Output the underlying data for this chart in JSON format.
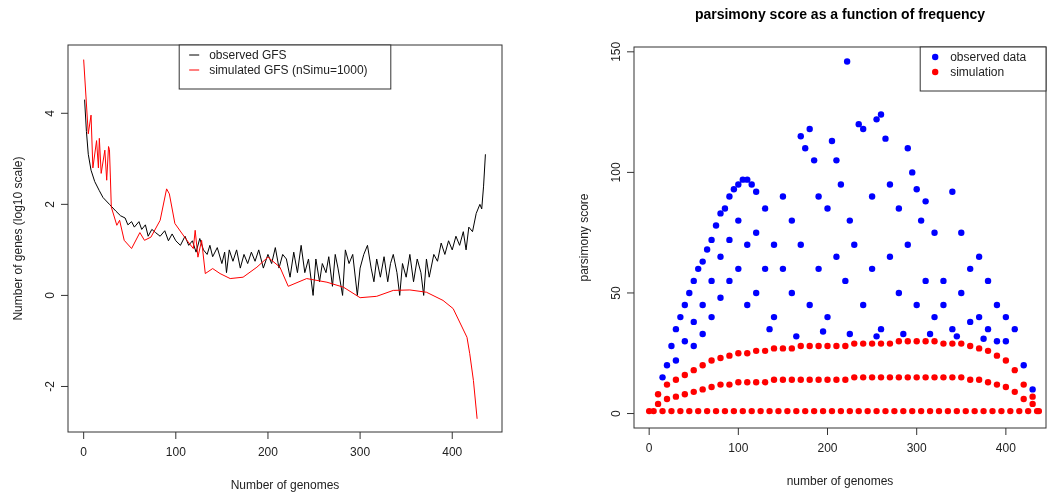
{
  "chart_data": [
    {
      "type": "line",
      "xlabel": "Number of genomes",
      "ylabel": "Number of genes (log10 scale)",
      "xlim": [
        -17,
        454
      ],
      "ylim": [
        -3,
        5.5
      ],
      "xticks": [
        0,
        100,
        200,
        300,
        400
      ],
      "yticks": [
        -2,
        0,
        2,
        4
      ],
      "legend": "top",
      "line_style": "solid",
      "series": [
        {
          "name": "observed GFS",
          "color": "#000000",
          "x": [
            1,
            3,
            5,
            8,
            12,
            17,
            21,
            28,
            35,
            40,
            45,
            48,
            52,
            55,
            60,
            63,
            67,
            70,
            74,
            78,
            83,
            88,
            92,
            96,
            100,
            105,
            110,
            114,
            118,
            122,
            126,
            130,
            134,
            137,
            140,
            145,
            150,
            153,
            155,
            158,
            162,
            166,
            170,
            174,
            178,
            182,
            186,
            190,
            195,
            200,
            204,
            208,
            212,
            216,
            220,
            224,
            228,
            232,
            236,
            240,
            244,
            249,
            252,
            256,
            259,
            263,
            266,
            270,
            273,
            276,
            281,
            284,
            288,
            292,
            297,
            300,
            304,
            308,
            312,
            315,
            318,
            322,
            326,
            330,
            333,
            336,
            340,
            343,
            346,
            350,
            354,
            358,
            362,
            366,
            369,
            372,
            375,
            380,
            384,
            388,
            392,
            396,
            400,
            404,
            408,
            412,
            415,
            418,
            422,
            426,
            430,
            432,
            434,
            436
          ],
          "values": [
            4.3,
            3.6,
            3.1,
            2.75,
            2.5,
            2.3,
            2.15,
            2.0,
            1.85,
            1.75,
            1.7,
            1.55,
            1.62,
            1.5,
            1.62,
            1.45,
            1.55,
            1.3,
            1.45,
            1.38,
            1.3,
            1.42,
            1.2,
            1.35,
            1.2,
            1.1,
            1.3,
            1.1,
            1.2,
            0.95,
            1.25,
            1.0,
            0.9,
            1.1,
            0.85,
            1.05,
            0.7,
            0.95,
            0.5,
            1.0,
            0.75,
            1.0,
            0.6,
            0.9,
            0.7,
            0.95,
            0.75,
            1.0,
            0.6,
            0.9,
            0.7,
            1.05,
            0.6,
            0.9,
            0.8,
            0.4,
            0.95,
            0.5,
            1.1,
            0.5,
            0.8,
            0.0,
            0.8,
            0.3,
            0.7,
            0.5,
            0.85,
            0.2,
            0.9,
            0.6,
            0.0,
            1.0,
            0.7,
            0.9,
            0.0,
            0.6,
            0.9,
            1.1,
            0.6,
            0.3,
            0.8,
            0.4,
            0.85,
            0.3,
            0.7,
            0.9,
            0.5,
            0.0,
            0.7,
            0.4,
            0.9,
            0.3,
            0.8,
            0.5,
            0.0,
            0.8,
            0.4,
            0.9,
            0.75,
            1.15,
            0.9,
            1.2,
            1.0,
            1.3,
            1.1,
            1.4,
            1.0,
            1.5,
            1.4,
            1.8,
            2.0,
            1.9,
            2.4,
            3.1
          ]
        },
        {
          "name": "simulated GFS (nSimu=1000)",
          "color": "#ff0000",
          "x": [
            0,
            5,
            8,
            10,
            14,
            16,
            17,
            19,
            23,
            25,
            27,
            28,
            29,
            30,
            36,
            39,
            44,
            52,
            61,
            66,
            73,
            83,
            90,
            93,
            99,
            112,
            119,
            121,
            124,
            128,
            132,
            140,
            148,
            159,
            173,
            188,
            200,
            213,
            222,
            242,
            264,
            282,
            300,
            318,
            336,
            354,
            372,
            390,
            401,
            416,
            419,
            423,
            427
          ],
          "values": [
            5.18,
            3.55,
            3.96,
            2.8,
            3.4,
            2.8,
            3.45,
            2.68,
            3.19,
            2.53,
            3.27,
            3.2,
            2.6,
            1.94,
            1.54,
            1.65,
            1.21,
            1.03,
            1.38,
            1.21,
            1.28,
            1.65,
            2.34,
            2.23,
            1.58,
            1.21,
            1.03,
            1.43,
            0.84,
            1.21,
            0.48,
            0.59,
            0.48,
            0.37,
            0.4,
            0.62,
            0.84,
            0.62,
            0.2,
            0.37,
            0.29,
            0.18,
            -0.05,
            -0.02,
            0.11,
            0.12,
            0.07,
            -0.11,
            -0.29,
            -0.92,
            -1.28,
            -1.87,
            -2.71
          ]
        }
      ]
    },
    {
      "type": "scatter",
      "title": "parsimony score as a function of frequency",
      "xlabel": "number of genomes",
      "ylabel": "parsimony score",
      "xlim": [
        -17,
        445
      ],
      "ylim": [
        -6,
        152
      ],
      "xticks": [
        0,
        100,
        200,
        300,
        400
      ],
      "yticks": [
        0,
        50,
        100,
        150
      ],
      "legend": "top right",
      "marker": "circle",
      "series": [
        {
          "name": "observed data",
          "color": "#0000ff",
          "x": [
            15,
            20,
            25,
            30,
            35,
            40,
            45,
            50,
            55,
            60,
            65,
            70,
            75,
            80,
            85,
            90,
            95,
            100,
            105,
            110,
            115,
            120,
            30,
            40,
            50,
            60,
            70,
            80,
            90,
            100,
            50,
            60,
            70,
            80,
            90,
            100,
            110,
            120,
            130,
            110,
            120,
            130,
            140,
            150,
            160,
            170,
            175,
            180,
            185,
            190,
            200,
            205,
            210,
            215,
            222,
            225,
            235,
            240,
            250,
            255,
            260,
            265,
            270,
            280,
            290,
            295,
            300,
            305,
            310,
            320,
            330,
            340,
            350,
            360,
            370,
            380,
            390,
            400,
            410,
            420,
            430,
            140,
            160,
            180,
            200,
            220,
            240,
            260,
            280,
            300,
            320,
            340,
            360,
            380,
            150,
            170,
            190,
            210,
            230,
            250,
            270,
            290,
            310,
            330,
            350,
            370,
            390,
            400,
            135,
            165,
            195,
            225,
            255,
            285,
            315,
            345,
            375
          ],
          "values": [
            15,
            20,
            28,
            35,
            40,
            45,
            50,
            55,
            60,
            63,
            68,
            72,
            78,
            83,
            85,
            90,
            93,
            95,
            97,
            97,
            95,
            92,
            22,
            30,
            38,
            45,
            55,
            65,
            72,
            80,
            28,
            33,
            40,
            48,
            55,
            60,
            70,
            75,
            85,
            45,
            50,
            60,
            70,
            90,
            80,
            115,
            110,
            118,
            105,
            90,
            85,
            113,
            105,
            95,
            146,
            80,
            120,
            118,
            90,
            122,
            124,
            114,
            95,
            85,
            110,
            100,
            93,
            80,
            88,
            75,
            55,
            92,
            75,
            60,
            65,
            55,
            45,
            40,
            35,
            20,
            10,
            40,
            50,
            45,
            40,
            55,
            45,
            35,
            50,
            45,
            40,
            35,
            38,
            35,
            60,
            70,
            60,
            65,
            70,
            60,
            65,
            70,
            55,
            45,
            50,
            40,
            30,
            30,
            35,
            32,
            34,
            33,
            32,
            33,
            33,
            32,
            31
          ]
        },
        {
          "name": "simulation",
          "color": "#ff0000",
          "x": [
            0,
            10,
            20,
            30,
            40,
            50,
            60,
            70,
            80,
            90,
            100,
            110,
            120,
            130,
            140,
            150,
            160,
            170,
            180,
            190,
            200,
            210,
            220,
            230,
            240,
            250,
            260,
            270,
            280,
            290,
            300,
            310,
            320,
            330,
            340,
            350,
            360,
            370,
            380,
            390,
            400,
            410,
            420,
            430,
            437,
            10,
            20,
            30,
            40,
            50,
            60,
            70,
            80,
            90,
            100,
            110,
            120,
            130,
            140,
            150,
            160,
            170,
            180,
            190,
            200,
            210,
            220,
            230,
            240,
            250,
            260,
            270,
            280,
            290,
            300,
            310,
            320,
            330,
            340,
            350,
            360,
            370,
            380,
            390,
            400,
            410,
            420,
            430,
            5,
            15,
            25,
            35,
            45,
            55,
            65,
            75,
            85,
            95,
            105,
            115,
            125,
            135,
            145,
            155,
            165,
            175,
            185,
            195,
            205,
            215,
            225,
            235,
            245,
            255,
            265,
            275,
            285,
            295,
            305,
            315,
            325,
            335,
            345,
            355,
            365,
            375,
            385,
            395,
            405,
            415,
            425,
            435
          ],
          "values": [
            1,
            8,
            12,
            14,
            16,
            18,
            20,
            22,
            23,
            24,
            25,
            25,
            26,
            26,
            27,
            27,
            27,
            28,
            28,
            28,
            28,
            28,
            28,
            29,
            29,
            29,
            29,
            29,
            30,
            30,
            30,
            30,
            30,
            29,
            29,
            29,
            28,
            27,
            26,
            24,
            22,
            18,
            12,
            7,
            1,
            4,
            6,
            7,
            8,
            9,
            10,
            11,
            12,
            12,
            13,
            13,
            13,
            13,
            14,
            14,
            14,
            14,
            14,
            14,
            14,
            14,
            14,
            15,
            15,
            15,
            15,
            15,
            15,
            15,
            15,
            15,
            15,
            15,
            15,
            15,
            14,
            14,
            13,
            12,
            11,
            9,
            6,
            4,
            1,
            1,
            1,
            1,
            1,
            1,
            1,
            1,
            1,
            1,
            1,
            1,
            1,
            1,
            1,
            1,
            1,
            1,
            1,
            1,
            1,
            1,
            1,
            1,
            1,
            1,
            1,
            1,
            1,
            1,
            1,
            1,
            1,
            1,
            1,
            1,
            1,
            1,
            1,
            1,
            1,
            1,
            1,
            1
          ]
        }
      ]
    }
  ]
}
